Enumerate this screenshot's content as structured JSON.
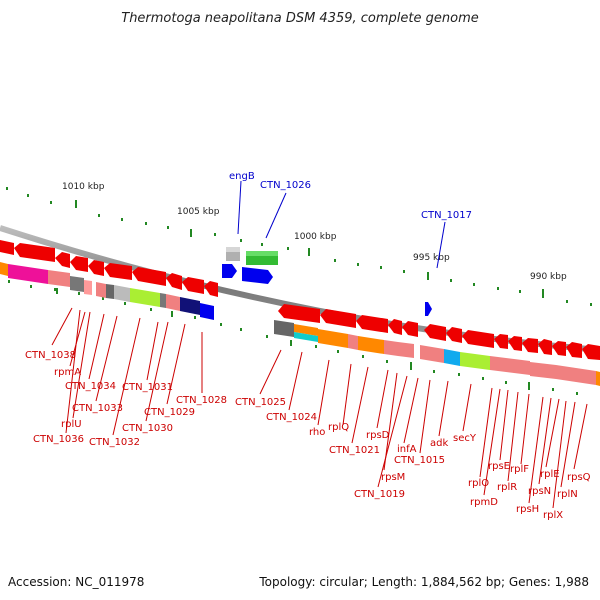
{
  "title": "Thermotoga neapolitana DSM 4359, complete genome",
  "footer": {
    "accession": "Accession: NC_011978",
    "topology": "Topology: circular; Length: 1,884,562 bp; Genes: 1,988"
  },
  "scale_labels": [
    "1010 kbp",
    "1005 kbp",
    "1000 kbp",
    "995 kbp",
    "990 kbp"
  ],
  "colors": {
    "forward_gene": "#0000ee",
    "reverse_gene": "#ee0000",
    "backbone": "#888888",
    "tick": "#228822",
    "label_red": "#cc0000",
    "label_blue": "#0000cc"
  },
  "top_labels": {
    "engB": "engB",
    "ctn1026": "CTN_1026",
    "ctn1017": "CTN_1017"
  },
  "gene_labels": {
    "ctn1038": "CTN_1038",
    "rpmA": "rpmA",
    "ctn1034": "CTN_1034",
    "ctn1033": "CTN_1033",
    "rplU": "rplU",
    "ctn1036": "CTN_1036",
    "ctn1032": "CTN_1032",
    "ctn1030": "CTN_1030",
    "ctn1031": "CTN_1031",
    "ctn1029": "CTN_1029",
    "ctn1028": "CTN_1028",
    "ctn1025": "CTN_1025",
    "ctn1024": "CTN_1024",
    "rho": "rho",
    "rplQ": "rplQ",
    "ctn1021": "CTN_1021",
    "rpsD": "rpsD",
    "rpsM": "rpsM",
    "ctn1019": "CTN_1019",
    "infA": "infA",
    "ctn1015": "CTN_1015",
    "adk": "adk",
    "secY": "secY",
    "rplO": "rplO",
    "rpmD": "rpmD",
    "rpsE": "rpsE",
    "rplR": "rplR",
    "rplF": "rplF",
    "rpsH": "rpsH",
    "rpsN": "rpsN",
    "rplE": "rplE",
    "rplX": "rplX",
    "rplN": "rplN",
    "rpsQ": "rpsQ"
  }
}
